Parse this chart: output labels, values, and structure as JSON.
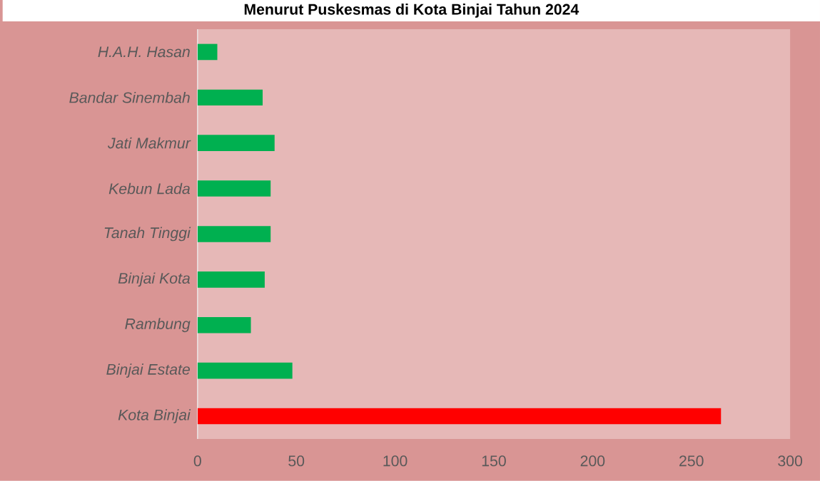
{
  "chart_data": {
    "type": "bar",
    "orientation": "horizontal",
    "title": "Menurut Puskesmas di Kota Binjai Tahun 2024",
    "categories": [
      "H.A.H. Hasan",
      "Bandar Sinembah",
      "Jati Makmur",
      "Kebun Lada",
      "Tanah Tinggi",
      "Binjai Kota",
      "Rambung",
      "Binjai Estate",
      "Kota Binjai"
    ],
    "values": [
      10,
      33,
      39,
      37,
      37,
      34,
      27,
      48,
      265
    ],
    "colors": [
      "#00b050",
      "#00b050",
      "#00b050",
      "#00b050",
      "#00b050",
      "#00b050",
      "#00b050",
      "#00b050",
      "#ff0000"
    ],
    "xlim": [
      0,
      300
    ],
    "xticks": [
      0,
      50,
      100,
      150,
      200,
      250,
      300
    ]
  }
}
